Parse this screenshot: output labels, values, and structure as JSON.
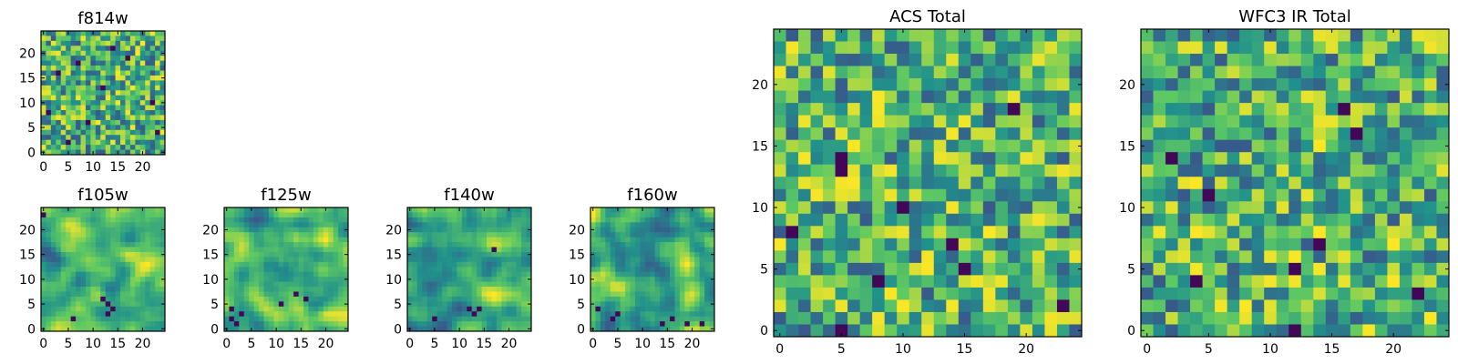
{
  "chart_data": [
    {
      "id": "f814w",
      "type": "heatmap",
      "title": "f814w",
      "colormap": "viridis",
      "grid_size": 25,
      "xlim": [
        0,
        24
      ],
      "ylim": [
        0,
        24
      ],
      "xticks": [
        "0",
        "5",
        "10",
        "15",
        "20"
      ],
      "yticks": [
        "0",
        "5",
        "10",
        "15",
        "20"
      ],
      "seed": 814,
      "smoothing": 0,
      "dark_cells": [
        [
          18,
          9
        ],
        [
          5,
          17
        ],
        [
          20,
          23
        ],
        [
          14,
          22
        ],
        [
          8,
          3
        ],
        [
          3,
          14
        ],
        [
          11,
          12
        ],
        [
          22,
          5
        ],
        [
          16,
          1
        ],
        [
          6,
          7
        ]
      ]
    },
    {
      "id": "f105w",
      "type": "heatmap",
      "title": "f105w",
      "colormap": "viridis",
      "grid_size": 25,
      "xlim": [
        0,
        24
      ],
      "ylim": [
        0,
        24
      ],
      "xticks": [
        "0",
        "5",
        "10",
        "15",
        "20"
      ],
      "yticks": [
        "0",
        "5",
        "10",
        "15",
        "20"
      ],
      "seed": 105,
      "smoothing": 2,
      "dark_cells": [
        [
          19,
          13
        ],
        [
          20,
          14
        ],
        [
          18,
          12
        ],
        [
          21,
          13
        ],
        [
          22,
          6
        ],
        [
          1,
          0
        ]
      ]
    },
    {
      "id": "f125w",
      "type": "heatmap",
      "title": "f125w",
      "colormap": "viridis",
      "grid_size": 25,
      "xlim": [
        0,
        24
      ],
      "ylim": [
        0,
        24
      ],
      "xticks": [
        "0",
        "5",
        "10",
        "15",
        "20"
      ],
      "yticks": [
        "0",
        "5",
        "10",
        "15",
        "20"
      ],
      "seed": 125,
      "smoothing": 2,
      "dark_cells": [
        [
          23,
          2
        ],
        [
          22,
          1
        ],
        [
          21,
          3
        ],
        [
          18,
          16
        ],
        [
          19,
          11
        ],
        [
          20,
          1
        ],
        [
          17,
          14
        ]
      ]
    },
    {
      "id": "f140w",
      "type": "heatmap",
      "title": "f140w",
      "colormap": "viridis",
      "grid_size": 25,
      "xlim": [
        0,
        24
      ],
      "ylim": [
        0,
        24
      ],
      "xticks": [
        "0",
        "5",
        "10",
        "15",
        "20"
      ],
      "yticks": [
        "0",
        "5",
        "10",
        "15",
        "20"
      ],
      "seed": 140,
      "smoothing": 2,
      "dark_cells": [
        [
          20,
          12
        ],
        [
          21,
          13
        ],
        [
          20,
          14
        ],
        [
          8,
          17
        ],
        [
          22,
          5
        ]
      ]
    },
    {
      "id": "f160w",
      "type": "heatmap",
      "title": "f160w",
      "colormap": "viridis",
      "grid_size": 25,
      "xlim": [
        0,
        24
      ],
      "ylim": [
        0,
        24
      ],
      "xticks": [
        "0",
        "5",
        "10",
        "15",
        "20"
      ],
      "yticks": [
        "0",
        "5",
        "10",
        "15",
        "20"
      ],
      "seed": 160,
      "smoothing": 2,
      "dark_cells": [
        [
          22,
          4
        ],
        [
          21,
          5
        ],
        [
          23,
          14
        ],
        [
          22,
          16
        ],
        [
          20,
          1
        ],
        [
          23,
          19
        ],
        [
          23,
          22
        ]
      ]
    },
    {
      "id": "acs_total",
      "type": "heatmap",
      "title": "ACS Total",
      "colormap": "viridis",
      "grid_size": 25,
      "xlim": [
        0,
        24
      ],
      "ylim": [
        0,
        24
      ],
      "xticks": [
        "0",
        "5",
        "10",
        "15",
        "20"
      ],
      "yticks": [
        "0",
        "5",
        "10",
        "15",
        "20"
      ],
      "seed": 901,
      "smoothing": 0,
      "dark_cells": [
        [
          11,
          5
        ],
        [
          10,
          5
        ],
        [
          14,
          10
        ],
        [
          22,
          23
        ],
        [
          17,
          14
        ],
        [
          24,
          5
        ],
        [
          20,
          8
        ],
        [
          19,
          15
        ],
        [
          16,
          1
        ],
        [
          6,
          19
        ]
      ]
    },
    {
      "id": "wfc3_ir_total",
      "type": "heatmap",
      "title": "WFC3 IR Total",
      "colormap": "viridis",
      "grid_size": 25,
      "xlim": [
        0,
        24
      ],
      "ylim": [
        0,
        24
      ],
      "xticks": [
        "0",
        "5",
        "10",
        "15",
        "20"
      ],
      "yticks": [
        "0",
        "5",
        "10",
        "15",
        "20"
      ],
      "seed": 902,
      "smoothing": 0,
      "dark_cells": [
        [
          19,
          12
        ],
        [
          10,
          2
        ],
        [
          6,
          16
        ],
        [
          21,
          22
        ],
        [
          24,
          12
        ],
        [
          13,
          5
        ],
        [
          8,
          17
        ],
        [
          20,
          4
        ],
        [
          17,
          14
        ]
      ]
    }
  ]
}
